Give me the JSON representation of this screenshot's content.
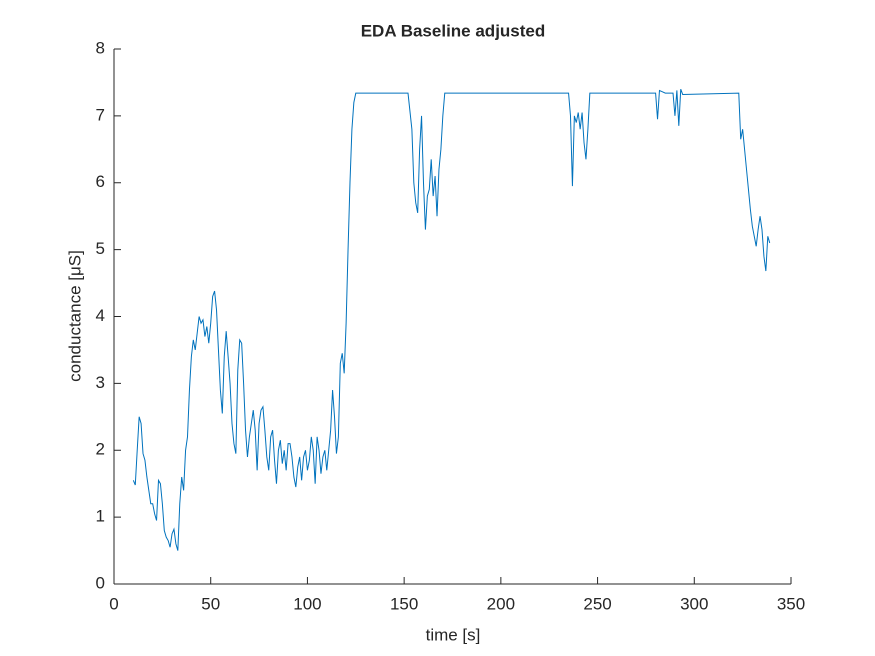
{
  "chart_data": {
    "type": "line",
    "title": "EDA Baseline adjusted",
    "x_label": "time [s]",
    "y_label": "conductance [μS]",
    "xlim": [
      0,
      350
    ],
    "xticks": [
      0,
      50,
      100,
      150,
      200,
      250,
      300,
      350
    ],
    "ylim": [
      0,
      8
    ],
    "yticks": [
      0,
      1,
      2,
      3,
      4,
      5,
      6,
      7,
      8
    ],
    "series": [
      {
        "name": "EDA",
        "color": "#0072bd",
        "x": [
          10,
          11,
          12,
          13,
          14,
          15,
          16,
          17,
          18,
          19,
          20,
          21,
          22,
          23,
          24,
          25,
          26,
          27,
          28,
          29,
          30,
          31,
          32,
          33,
          34,
          35,
          36,
          37,
          38,
          39,
          40,
          41,
          42,
          43,
          44,
          45,
          46,
          47,
          48,
          49,
          50,
          51,
          52,
          53,
          54,
          55,
          56,
          57,
          58,
          59,
          60,
          61,
          62,
          63,
          64,
          65,
          66,
          67,
          68,
          69,
          70,
          72,
          73,
          74,
          75,
          76,
          77,
          78,
          79,
          80,
          81,
          82,
          83,
          84,
          85,
          86,
          87,
          88,
          89,
          90,
          91,
          92,
          93,
          94,
          95,
          96,
          97,
          98,
          99,
          100,
          101,
          102,
          103,
          104,
          105,
          106,
          107,
          108,
          109,
          110,
          111,
          112,
          113,
          114,
          115,
          116,
          117,
          118,
          119,
          120,
          121,
          122,
          123,
          124,
          125,
          152,
          154,
          155,
          156,
          157,
          158,
          159,
          160,
          161,
          162,
          163,
          164,
          165,
          166,
          167,
          168,
          169,
          170,
          171,
          235,
          236,
          237,
          238,
          239,
          240,
          241,
          242,
          243,
          244,
          245,
          246,
          280,
          281,
          282,
          285,
          289,
          290,
          291,
          292,
          293,
          294,
          323,
          324,
          325,
          326,
          327,
          328,
          329,
          330,
          331,
          332,
          333,
          334,
          335,
          336,
          337,
          338,
          339
        ],
        "values": [
          1.55,
          1.48,
          2.0,
          2.5,
          2.4,
          1.95,
          1.85,
          1.6,
          1.4,
          1.2,
          1.2,
          1.05,
          0.95,
          1.55,
          1.5,
          1.2,
          0.8,
          0.7,
          0.65,
          0.55,
          0.75,
          0.82,
          0.6,
          0.5,
          1.2,
          1.6,
          1.4,
          2.0,
          2.2,
          2.9,
          3.4,
          3.65,
          3.5,
          3.75,
          4.0,
          3.9,
          3.95,
          3.7,
          3.85,
          3.6,
          3.9,
          4.3,
          4.38,
          4.1,
          3.5,
          2.9,
          2.55,
          3.4,
          3.78,
          3.4,
          3.0,
          2.4,
          2.1,
          1.95,
          3.2,
          3.65,
          3.6,
          3.0,
          2.3,
          1.9,
          2.2,
          2.6,
          2.3,
          1.7,
          2.4,
          2.6,
          2.65,
          2.3,
          1.9,
          1.7,
          2.2,
          2.3,
          1.85,
          1.5,
          2.0,
          2.15,
          1.8,
          2.0,
          1.7,
          2.1,
          2.1,
          1.9,
          1.6,
          1.45,
          1.75,
          1.9,
          1.55,
          1.9,
          2.0,
          1.7,
          1.85,
          2.2,
          2.0,
          1.5,
          2.2,
          2.0,
          1.65,
          1.9,
          2.0,
          1.7,
          2.0,
          2.3,
          2.9,
          2.5,
          1.95,
          2.2,
          3.3,
          3.45,
          3.15,
          3.9,
          5.0,
          6.0,
          6.8,
          7.2,
          7.34,
          7.34,
          6.8,
          6.0,
          5.7,
          5.55,
          6.5,
          7.0,
          6.0,
          5.3,
          5.8,
          5.9,
          6.35,
          5.8,
          6.1,
          5.5,
          6.2,
          6.5,
          7.0,
          7.34,
          7.34,
          7.0,
          5.95,
          7.0,
          6.9,
          7.05,
          6.8,
          7.05,
          6.6,
          6.35,
          6.8,
          7.34,
          7.34,
          6.95,
          7.38,
          7.34,
          7.34,
          7.0,
          7.38,
          6.85,
          7.4,
          7.32,
          7.34,
          6.65,
          6.8,
          6.5,
          6.2,
          5.9,
          5.6,
          5.35,
          5.2,
          5.05,
          5.3,
          5.5,
          5.3,
          4.9,
          4.68,
          5.2,
          5.1
        ]
      }
    ]
  }
}
